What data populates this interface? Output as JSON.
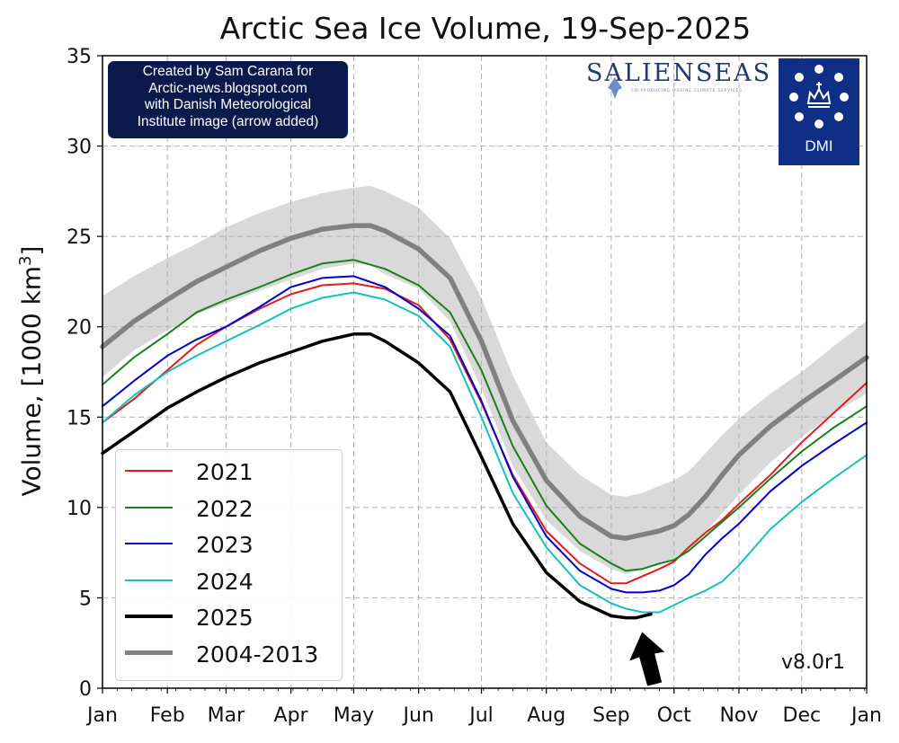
{
  "chart_data": {
    "type": "line",
    "title": "Arctic Sea Ice Volume, 19-Sep-2025",
    "ylabel": "Volume, [1000 km³]",
    "xlabel": "",
    "xlim": [
      0,
      365
    ],
    "ylim": [
      0,
      35
    ],
    "y_ticks": [
      0,
      5,
      10,
      15,
      20,
      25,
      30,
      35
    ],
    "x_ticks": [
      {
        "day": 0,
        "label": "Jan"
      },
      {
        "day": 31,
        "label": "Feb"
      },
      {
        "day": 59,
        "label": "Mar"
      },
      {
        "day": 90,
        "label": "Apr"
      },
      {
        "day": 120,
        "label": "May"
      },
      {
        "day": 151,
        "label": "Jun"
      },
      {
        "day": 181,
        "label": "Jul"
      },
      {
        "day": 212,
        "label": "Aug"
      },
      {
        "day": 243,
        "label": "Sep"
      },
      {
        "day": 273,
        "label": "Oct"
      },
      {
        "day": 304,
        "label": "Nov"
      },
      {
        "day": 334,
        "label": "Dec"
      },
      {
        "day": 365,
        "label": "Jan"
      }
    ],
    "grid": true,
    "legend_position": "bottom-left",
    "series": [
      {
        "name": "2021",
        "color": "#e31a1c",
        "width": 2,
        "x": [
          0,
          15,
          31,
          45,
          59,
          75,
          90,
          105,
          120,
          135,
          151,
          166,
          181,
          196,
          212,
          228,
          243,
          250,
          258,
          266,
          273,
          280,
          288,
          296,
          304,
          319,
          334,
          349,
          365
        ],
        "y": [
          14.7,
          16.0,
          17.6,
          19.0,
          20.0,
          21.0,
          21.8,
          22.3,
          22.4,
          22.1,
          21.2,
          19.3,
          15.8,
          11.8,
          8.7,
          6.9,
          5.8,
          5.8,
          6.2,
          6.6,
          7.0,
          7.8,
          8.6,
          9.3,
          10.2,
          11.8,
          13.6,
          15.2,
          16.9
        ]
      },
      {
        "name": "2022",
        "color": "#1a7f1a",
        "width": 2,
        "x": [
          0,
          15,
          31,
          45,
          59,
          75,
          90,
          105,
          120,
          135,
          151,
          166,
          181,
          196,
          212,
          228,
          243,
          250,
          258,
          266,
          273,
          280,
          288,
          296,
          304,
          319,
          334,
          349,
          365
        ],
        "y": [
          16.8,
          18.3,
          19.6,
          20.8,
          21.5,
          22.2,
          22.9,
          23.5,
          23.7,
          23.2,
          22.3,
          20.8,
          17.6,
          13.4,
          10.1,
          8.0,
          6.9,
          6.5,
          6.6,
          6.9,
          7.1,
          7.6,
          8.4,
          9.2,
          10.0,
          11.6,
          13.1,
          14.4,
          15.6
        ]
      },
      {
        "name": "2023",
        "color": "#0000cc",
        "width": 2,
        "x": [
          0,
          15,
          31,
          45,
          59,
          75,
          90,
          105,
          120,
          135,
          151,
          166,
          181,
          196,
          212,
          228,
          243,
          250,
          258,
          266,
          273,
          280,
          288,
          296,
          304,
          319,
          334,
          349,
          365
        ],
        "y": [
          15.6,
          17.0,
          18.4,
          19.3,
          20.0,
          21.1,
          22.2,
          22.7,
          22.8,
          22.2,
          21.0,
          19.5,
          15.9,
          11.7,
          8.4,
          6.5,
          5.5,
          5.3,
          5.3,
          5.4,
          5.7,
          6.3,
          7.4,
          8.3,
          9.1,
          10.9,
          12.3,
          13.5,
          14.7
        ]
      },
      {
        "name": "2024",
        "color": "#17bfbf",
        "width": 2,
        "x": [
          0,
          15,
          31,
          45,
          59,
          75,
          90,
          105,
          120,
          135,
          151,
          166,
          181,
          196,
          212,
          228,
          243,
          250,
          258,
          266,
          273,
          280,
          288,
          296,
          304,
          319,
          334,
          349,
          365
        ],
        "y": [
          14.7,
          16.2,
          17.5,
          18.4,
          19.2,
          20.1,
          21.0,
          21.6,
          21.9,
          21.5,
          20.6,
          18.9,
          15.0,
          10.8,
          7.8,
          5.7,
          4.7,
          4.4,
          4.2,
          4.2,
          4.6,
          5.0,
          5.4,
          5.9,
          6.8,
          8.8,
          10.3,
          11.6,
          12.9
        ]
      },
      {
        "name": "2025",
        "color": "#000000",
        "width": 3.5,
        "x": [
          0,
          15,
          31,
          45,
          59,
          75,
          90,
          105,
          120,
          128,
          135,
          151,
          166,
          181,
          196,
          212,
          228,
          243,
          250,
          255,
          262
        ],
        "y": [
          13.0,
          14.2,
          15.5,
          16.4,
          17.2,
          18.0,
          18.6,
          19.2,
          19.6,
          19.6,
          19.2,
          18.0,
          16.4,
          12.8,
          9.1,
          6.4,
          4.8,
          4.0,
          3.9,
          3.9,
          4.1
        ]
      },
      {
        "name": "2004-2013",
        "color": "#808080",
        "width": 5.5,
        "x": [
          0,
          15,
          31,
          45,
          59,
          75,
          90,
          105,
          120,
          128,
          135,
          151,
          166,
          181,
          196,
          212,
          228,
          243,
          250,
          258,
          266,
          273,
          280,
          288,
          296,
          304,
          319,
          334,
          349,
          365
        ],
        "y": [
          18.9,
          20.3,
          21.5,
          22.5,
          23.3,
          24.2,
          24.9,
          25.4,
          25.6,
          25.6,
          25.3,
          24.3,
          22.7,
          19.2,
          14.8,
          11.5,
          9.5,
          8.4,
          8.3,
          8.5,
          8.7,
          9.0,
          9.6,
          10.6,
          11.8,
          12.9,
          14.5,
          15.8,
          17.0,
          18.3
        ]
      }
    ],
    "band": {
      "color": "#d9d9d9",
      "x": [
        0,
        15,
        31,
        45,
        59,
        75,
        90,
        105,
        120,
        128,
        135,
        151,
        166,
        181,
        196,
        212,
        228,
        243,
        250,
        258,
        266,
        273,
        280,
        288,
        296,
        304,
        319,
        334,
        349,
        365
      ],
      "upper": [
        21.7,
        22.8,
        23.8,
        24.6,
        25.5,
        26.3,
        26.9,
        27.4,
        27.7,
        27.8,
        27.5,
        26.6,
        24.9,
        21.6,
        17.3,
        13.6,
        11.8,
        10.7,
        10.6,
        10.8,
        11.2,
        11.5,
        12.0,
        13.0,
        14.0,
        14.9,
        16.3,
        17.5,
        18.9,
        20.3
      ],
      "lower": [
        17.2,
        18.7,
        19.8,
        20.7,
        21.3,
        22.0,
        22.6,
        23.2,
        23.5,
        23.4,
        22.9,
        22.1,
        20.3,
        16.6,
        12.3,
        9.3,
        7.6,
        6.6,
        6.3,
        6.6,
        6.8,
        7.1,
        7.6,
        8.6,
        9.7,
        10.7,
        12.5,
        13.9,
        15.2,
        16.3
      ]
    },
    "annotations": {
      "arrow": {
        "x": 256,
        "y": 3.9,
        "color": "#000000"
      },
      "version": "v8.0r1"
    }
  },
  "credit": {
    "line1": "Created by Sam Carana for",
    "line2": "Arctic-news.blogspot.com",
    "line3": "with Danish Meteorological",
    "line4": "Institute image (arrow added)"
  },
  "logos": {
    "salienseas": "SALIENSEAS",
    "salienseas_sub": "CO-PRODUCING MARINE CLIMATE SERVICES",
    "dmi": "DMI"
  }
}
